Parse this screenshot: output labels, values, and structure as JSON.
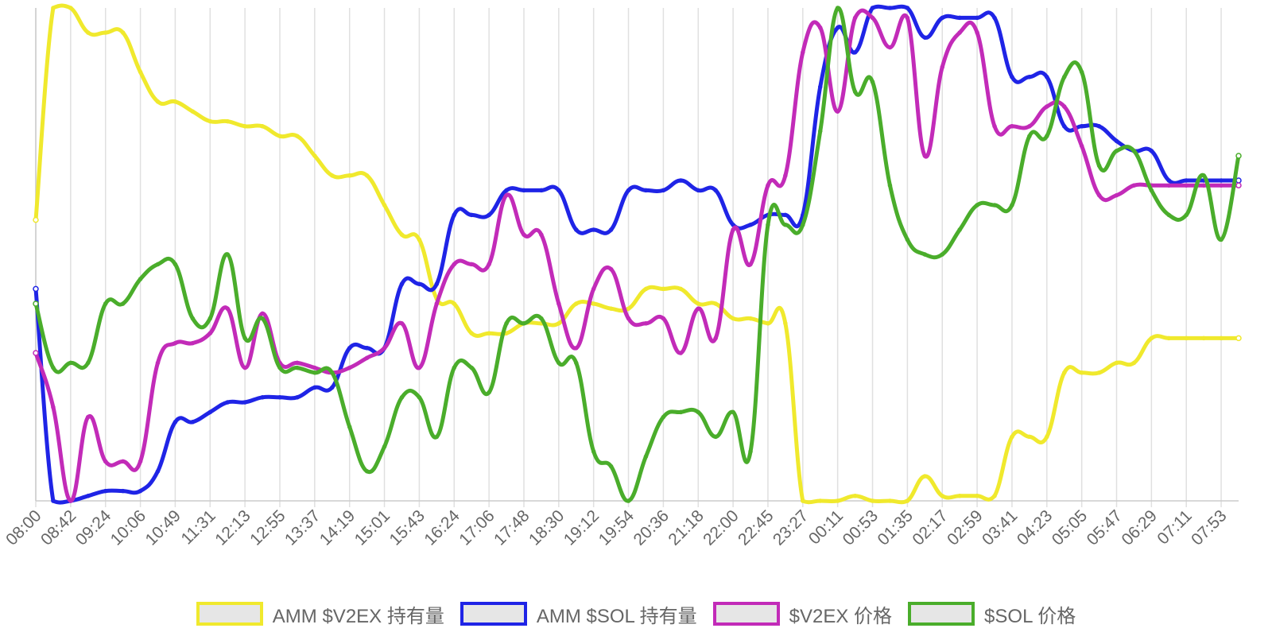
{
  "chart_data": {
    "type": "line",
    "title": "",
    "xlabel": "",
    "ylabel": "",
    "ylim": [
      0,
      100
    ],
    "grid": true,
    "legend_position": "bottom",
    "y_axis_labels": false,
    "categories": [
      "08:00",
      "08:42",
      "09:24",
      "10:06",
      "10:49",
      "11:31",
      "12:13",
      "12:55",
      "13:37",
      "14:19",
      "15:01",
      "15:43",
      "16:24",
      "17:06",
      "17:48",
      "18:30",
      "19:12",
      "19:54",
      "20:36",
      "21:18",
      "22:00",
      "22:45",
      "23:27",
      "00:11",
      "00:53",
      "01:35",
      "02:17",
      "02:59",
      "03:41",
      "04:23",
      "05:05",
      "05:47",
      "06:29",
      "07:11",
      "07:53"
    ],
    "x": [
      0,
      0.5,
      1,
      1.5,
      2,
      2.5,
      3,
      3.5,
      4,
      4.5,
      5,
      5.5,
      6,
      6.5,
      7,
      7.5,
      8,
      8.5,
      9,
      9.5,
      10,
      10.5,
      11,
      11.5,
      12,
      12.5,
      13,
      13.5,
      14,
      14.5,
      15,
      15.5,
      16,
      16.5,
      17,
      17.5,
      18,
      18.5,
      19,
      19.5,
      20,
      20.5,
      21,
      21.5,
      22,
      22.5,
      23,
      23.5,
      24,
      24.5,
      25,
      25.5,
      26,
      26.5,
      27,
      27.5,
      28,
      28.5,
      29,
      29.5,
      30,
      30.5,
      31,
      31.5,
      32,
      32.5,
      33,
      33.5,
      34,
      34.5
    ],
    "series": [
      {
        "name": "AMM $V2EX 持有量",
        "color": "#f0e92d",
        "values": [
          57,
          100,
          100,
          95,
          95,
          95,
          87,
          81,
          81,
          79,
          77,
          77,
          76,
          76,
          74,
          74,
          70,
          66,
          66,
          66,
          60,
          54,
          53,
          41,
          40,
          34,
          34,
          34,
          36,
          36,
          36,
          40,
          40,
          39,
          39,
          43,
          43,
          43,
          40,
          40,
          37,
          37,
          36,
          36,
          0,
          0,
          0,
          1,
          0,
          0,
          0,
          5,
          1,
          1,
          1,
          1,
          13,
          13,
          13,
          26,
          26,
          26,
          28,
          28,
          33,
          33,
          33,
          33,
          33,
          33
        ]
      },
      {
        "name": "AMM $SOL 持有量",
        "color": "#1f24e6",
        "values": [
          43,
          0,
          0,
          1,
          2,
          2,
          2,
          6,
          16,
          16,
          18,
          20,
          20,
          21,
          21,
          21,
          23,
          23,
          31,
          31,
          31,
          44,
          44,
          44,
          58,
          58,
          58,
          63,
          63,
          63,
          63,
          55,
          55,
          55,
          63,
          63,
          63,
          65,
          63,
          63,
          56,
          56,
          58,
          58,
          58,
          84,
          96,
          91,
          100,
          100,
          100,
          94,
          98,
          98,
          98,
          98,
          86,
          86,
          86,
          76,
          76,
          76,
          73,
          71,
          71,
          65,
          65,
          65,
          65,
          65
        ]
      },
      {
        "name": "$V2EX 价格",
        "color": "#c22bb8",
        "values": [
          30,
          19,
          0,
          17,
          8,
          8,
          8,
          28,
          32,
          32,
          34,
          39,
          27,
          38,
          28,
          28,
          27,
          26,
          27,
          29,
          31,
          36,
          27,
          40,
          48,
          48,
          48,
          62,
          54,
          54,
          40,
          31,
          43,
          47,
          37,
          36,
          37,
          30,
          39,
          33,
          55,
          48,
          64,
          66,
          91,
          96,
          79,
          98,
          98,
          92,
          98,
          70,
          88,
          95,
          95,
          76,
          76,
          76,
          80,
          80,
          72,
          62,
          62,
          64,
          64,
          64,
          64,
          64,
          64,
          64
        ]
      },
      {
        "name": "$SOL 价格",
        "color": "#4aad2b",
        "values": [
          40,
          27,
          28,
          28,
          40,
          40,
          45,
          48,
          48,
          37,
          37,
          50,
          33,
          37,
          27,
          27,
          26,
          26,
          15,
          6,
          11,
          21,
          21,
          13,
          27,
          27,
          22,
          36,
          36,
          37,
          28,
          28,
          10,
          7,
          0,
          9,
          17,
          18,
          18,
          13,
          18,
          10,
          56,
          56,
          56,
          75,
          100,
          83,
          85,
          64,
          53,
          50,
          50,
          55,
          60,
          60,
          60,
          74,
          74,
          86,
          87,
          68,
          71,
          71,
          63,
          58,
          58,
          66,
          53,
          70
        ]
      }
    ]
  }
}
